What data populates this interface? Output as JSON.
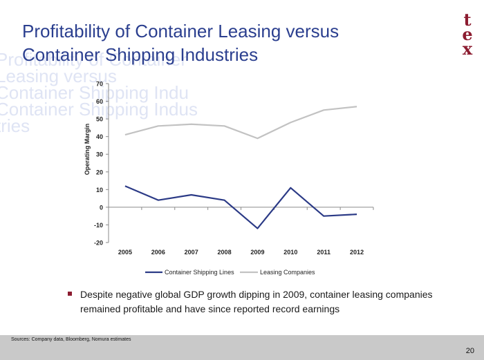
{
  "slide": {
    "title_line1": "Profitability of Container Leasing versus",
    "title_line2": "Container Shipping Industries",
    "ghost_lines": [
      "Profitability of Container",
      "Leasing versus",
      "Container Shipping Indu",
      "Container Shipping Indus",
      "tries"
    ],
    "logo": [
      "t",
      "e",
      "x"
    ],
    "bullet": "Despite negative global GDP growth dipping in 2009, container leasing companies remained profitable and have since reported record earnings",
    "sources": "Sources:  Company data, Bloomberg, Nomura estimates",
    "page_number": "20",
    "colors": {
      "title": "#2b3f8f",
      "logo": "#8c1c30",
      "footer": "#c9c9c9"
    }
  },
  "chart_data": {
    "type": "line",
    "x": [
      "2005",
      "2006",
      "2007",
      "2008",
      "2009",
      "2010",
      "2011",
      "2012"
    ],
    "ylabel": "Operating Margin",
    "ylim": [
      -20,
      70
    ],
    "yticks": [
      70,
      60,
      50,
      40,
      30,
      20,
      10,
      0,
      -10,
      -20
    ],
    "grid": false,
    "legend_position": "bottom",
    "series": [
      {
        "name": "Container Shipping Lines",
        "color": "#2b3a86",
        "values": [
          12,
          4,
          7,
          4,
          -12,
          11,
          -5,
          -4
        ]
      },
      {
        "name": "Leasing Companies",
        "color": "#c2c2c2",
        "values": [
          41,
          46,
          47,
          46,
          39,
          48,
          55,
          57
        ]
      }
    ]
  }
}
